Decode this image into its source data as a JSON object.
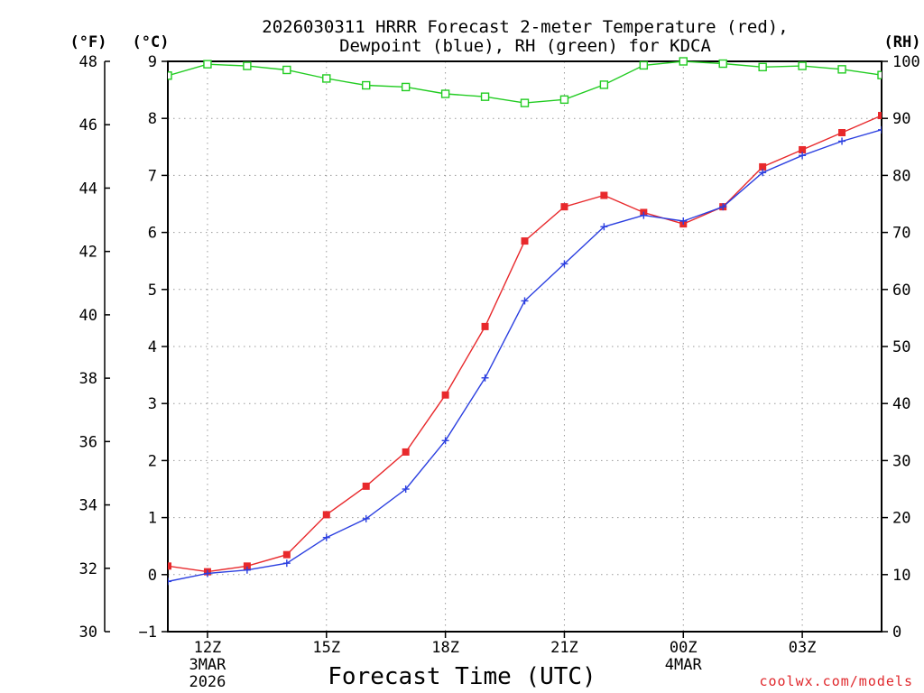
{
  "chart_data": {
    "type": "line",
    "title": "2026030311 HRRR Forecast 2-meter Temperature (red),",
    "subtitle": "Dewpoint (blue), RH (green) for KDCA",
    "xlabel": "Forecast Time (UTC)",
    "credit": "coolwx.com/models",
    "units": {
      "fahrenheit": "(°F)",
      "celsius": "(°C)",
      "rh": "(RH)"
    },
    "x": [
      11,
      12,
      13,
      14,
      15,
      16,
      17,
      18,
      19,
      20,
      21,
      22,
      23,
      24,
      25,
      26,
      27,
      28,
      29
    ],
    "xlim": [
      11,
      29
    ],
    "x_ticks": [
      {
        "x": 12,
        "label": "12Z",
        "line2": "3MAR",
        "line3": "2026"
      },
      {
        "x": 15,
        "label": "15Z",
        "line2": "",
        "line3": ""
      },
      {
        "x": 18,
        "label": "18Z",
        "line2": "",
        "line3": ""
      },
      {
        "x": 21,
        "label": "21Z",
        "line2": "",
        "line3": ""
      },
      {
        "x": 24,
        "label": "00Z",
        "line2": "4MAR",
        "line3": ""
      },
      {
        "x": 27,
        "label": "03Z",
        "line2": "",
        "line3": ""
      }
    ],
    "ylim_c": [
      -1,
      9
    ],
    "ylim_f": [
      30,
      48
    ],
    "ylim_rh": [
      0,
      100
    ],
    "yticks_c": [
      -1,
      0,
      1,
      2,
      3,
      4,
      5,
      6,
      7,
      8,
      9
    ],
    "yticks_f": [
      30,
      32,
      34,
      36,
      38,
      40,
      42,
      44,
      46,
      48
    ],
    "yticks_rh": [
      0,
      10,
      20,
      30,
      40,
      50,
      60,
      70,
      80,
      90,
      100
    ],
    "grid": true,
    "series": [
      {
        "name": "Temperature",
        "axis": "c",
        "color": "#e8292c",
        "marker": "filled-square",
        "values": [
          0.15,
          0.05,
          0.15,
          0.35,
          1.05,
          1.55,
          2.15,
          3.15,
          4.35,
          5.85,
          6.45,
          6.65,
          6.35,
          6.15,
          6.45,
          7.15,
          7.45,
          7.75,
          8.05
        ]
      },
      {
        "name": "Dewpoint",
        "axis": "c",
        "color": "#2b3fe0",
        "marker": "plus",
        "values": [
          -0.12,
          0.02,
          0.08,
          0.2,
          0.65,
          0.98,
          1.5,
          2.35,
          3.45,
          4.8,
          5.45,
          6.1,
          6.3,
          6.2,
          6.45,
          7.05,
          7.35,
          7.6,
          7.8
        ]
      },
      {
        "name": "RH",
        "axis": "rh",
        "color": "#22cc22",
        "marker": "open-square",
        "values": [
          97.5,
          99.5,
          99.2,
          98.5,
          97.0,
          95.8,
          95.5,
          94.3,
          93.8,
          92.7,
          93.3,
          95.9,
          99.3,
          100.0,
          99.6,
          99.0,
          99.2,
          98.6,
          97.6
        ]
      }
    ]
  }
}
